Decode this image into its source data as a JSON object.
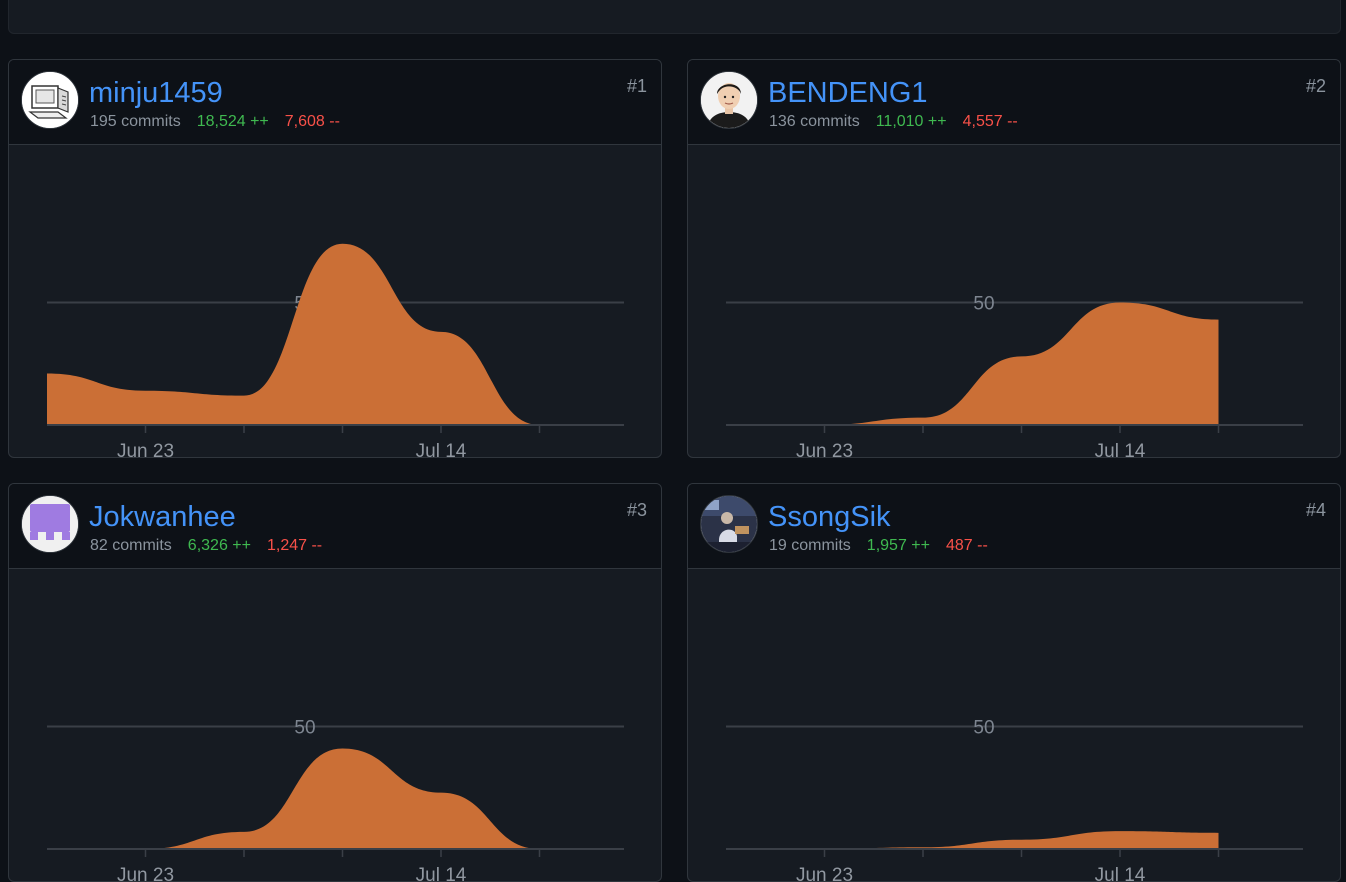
{
  "accent_color": "#4493f8",
  "area_color": "#cb6f36",
  "contributors": [
    {
      "rank": "#1",
      "username": "minju1459",
      "commits": "195 commits",
      "additions": "18,524 ++",
      "deletions": "7,608 --",
      "avatar_icon": "sketch-computer-avatar"
    },
    {
      "rank": "#2",
      "username": "BENDENG1",
      "commits": "136 commits",
      "additions": "11,010 ++",
      "deletions": "4,557 --",
      "avatar_icon": "portrait-photo-avatar"
    },
    {
      "rank": "#3",
      "username": "Jokwanhee",
      "commits": "82 commits",
      "additions": "6,326 ++",
      "deletions": "1,247 --",
      "avatar_icon": "purple-identicon-avatar"
    },
    {
      "rank": "#4",
      "username": "SsongSik",
      "commits": "19 commits",
      "additions": "1,957 ++",
      "deletions": "487 --",
      "avatar_icon": "photo-avatar"
    }
  ],
  "chart_data": [
    {
      "type": "area",
      "ylim": [
        0,
        75
      ],
      "gridline": 50,
      "x_tick_labels": [
        "Jun 23",
        "Jul 14"
      ],
      "x": [
        "Jun 16",
        "Jun 23",
        "Jun 30",
        "Jul 07",
        "Jul 14",
        "Jul 21"
      ],
      "values": [
        21,
        14,
        12,
        74,
        38,
        0
      ]
    },
    {
      "type": "area",
      "ylim": [
        0,
        75
      ],
      "gridline": 50,
      "x_tick_labels": [
        "Jun 23",
        "Jul 14"
      ],
      "x": [
        "Jun 16",
        "Jun 23",
        "Jun 30",
        "Jul 07",
        "Jul 14",
        "Jul 21"
      ],
      "values": [
        0,
        0,
        3,
        28,
        50,
        43
      ]
    },
    {
      "type": "area",
      "ylim": [
        0,
        75
      ],
      "gridline": 50,
      "x_tick_labels": [
        "Jun 23",
        "Jul 14"
      ],
      "x": [
        "Jun 16",
        "Jun 23",
        "Jun 30",
        "Jul 07",
        "Jul 14",
        "Jul 21"
      ],
      "values": [
        0,
        0,
        7,
        41,
        23,
        0
      ]
    },
    {
      "type": "area",
      "ylim": [
        0,
        75
      ],
      "gridline": 50,
      "x_tick_labels": [
        "Jun 23",
        "Jul 14"
      ],
      "x": [
        "Jun 16",
        "Jun 23",
        "Jun 30",
        "Jul 07",
        "Jul 14",
        "Jul 21"
      ],
      "values": [
        0,
        0,
        0.7,
        3.8,
        7.3,
        6.6
      ]
    }
  ]
}
